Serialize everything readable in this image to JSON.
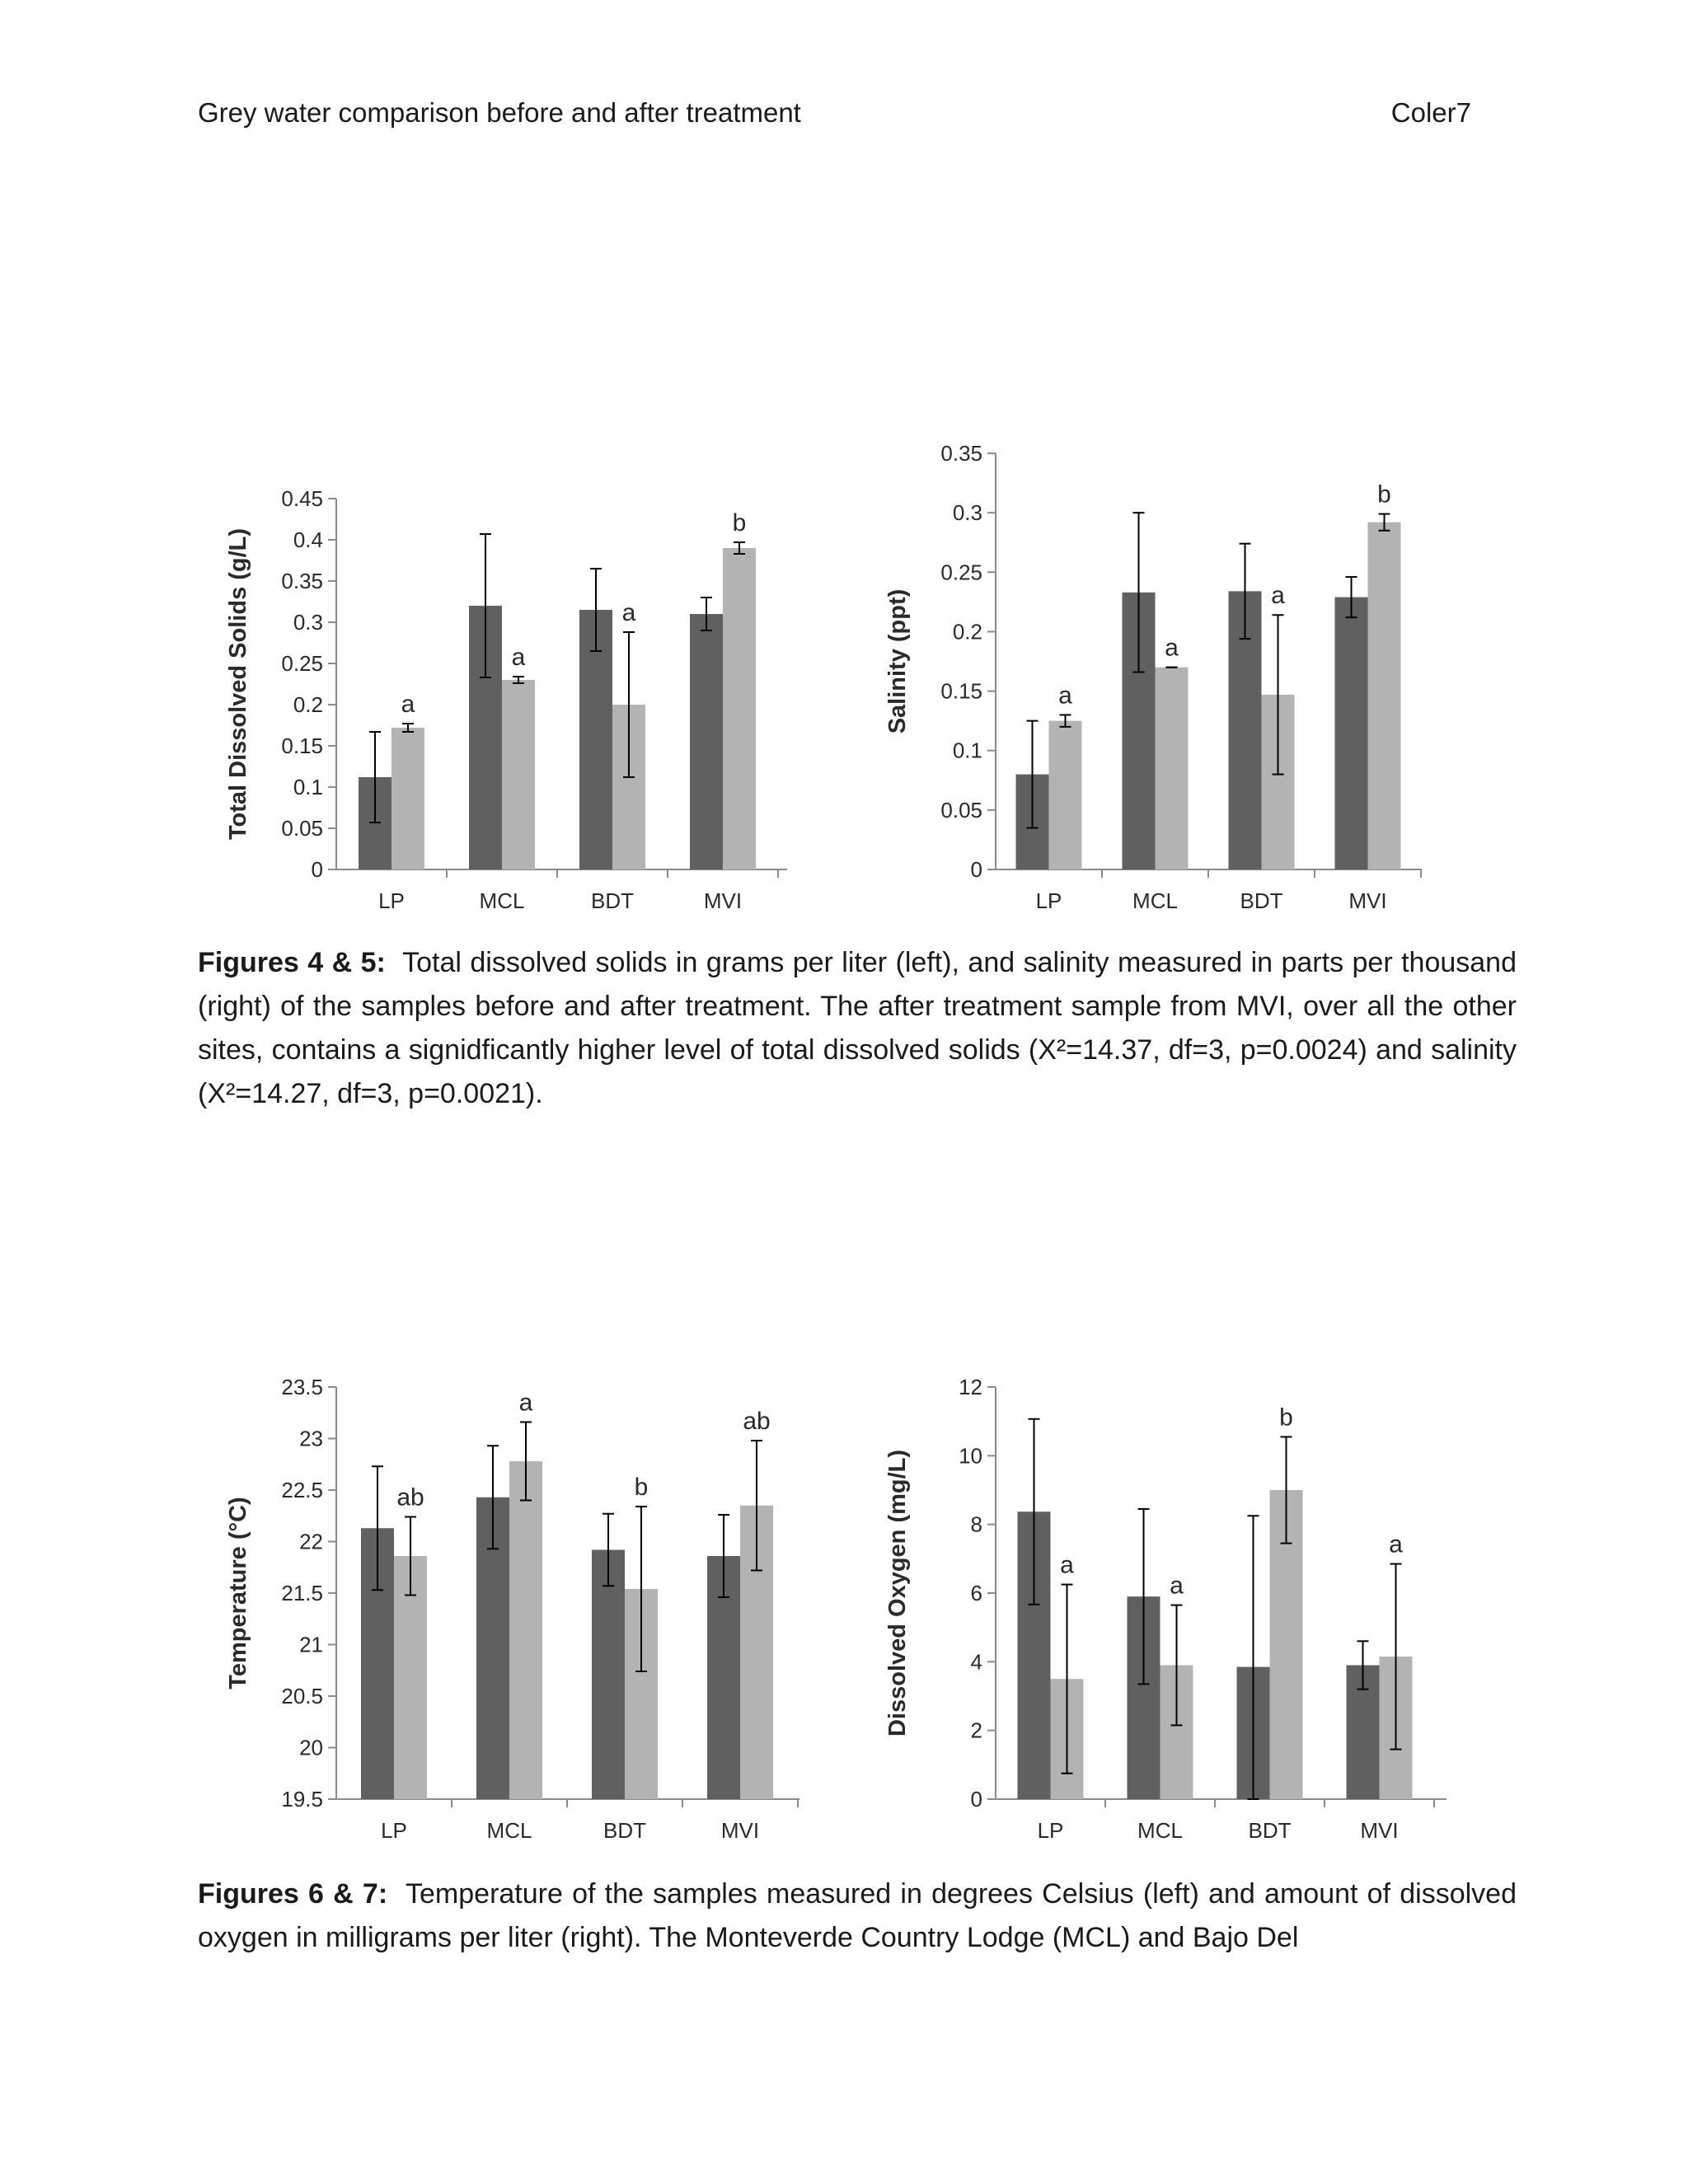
{
  "header": {
    "title": "Grey water comparison before and after treatment",
    "page_label": "Coler7"
  },
  "colors": {
    "before": "#606060",
    "after": "#b3b3b3",
    "axis": "#8a8a8a",
    "error_bar": "#000000"
  },
  "chart_data": [
    {
      "type": "bar",
      "categories": [
        "LP",
        "MCL",
        "BDT",
        "MVI"
      ],
      "ylabel": "Total Dissolved Solids (g/L)",
      "ylim": [
        0,
        0.45
      ],
      "yticks": [
        "0",
        "0.05",
        "0.1",
        "0.15",
        "0.2",
        "0.25",
        "0.3",
        "0.35",
        "0.4",
        "0.45"
      ],
      "legend": "none",
      "grid": false,
      "series": [
        {
          "values": [
            0.112,
            0.32,
            0.315,
            0.31
          ],
          "error": [
            0.055,
            0.087,
            0.05,
            0.02
          ]
        },
        {
          "values": [
            0.172,
            0.23,
            0.2,
            0.39
          ],
          "error": [
            0.005,
            0.004,
            0.088,
            0.007
          ]
        }
      ],
      "significance": [
        "a",
        "a",
        "a",
        "b"
      ]
    },
    {
      "type": "bar",
      "categories": [
        "LP",
        "MCL",
        "BDT",
        "MVI"
      ],
      "ylabel": "Salinity (ppt)",
      "ylim": [
        0,
        0.35
      ],
      "yticks": [
        "0",
        "0.05",
        "0.1",
        "0.15",
        "0.2",
        "0.25",
        "0.3",
        "0.35"
      ],
      "legend": "none",
      "grid": false,
      "series": [
        {
          "values": [
            0.08,
            0.233,
            0.234,
            0.229
          ],
          "error": [
            0.045,
            0.067,
            0.04,
            0.017
          ]
        },
        {
          "values": [
            0.125,
            0.17,
            0.147,
            0.292
          ],
          "error": [
            0.005,
            0.0,
            0.067,
            0.007
          ]
        }
      ],
      "significance": [
        "a",
        "a",
        "a",
        "b"
      ]
    },
    {
      "type": "bar",
      "categories": [
        "LP",
        "MCL",
        "BDT",
        "MVI"
      ],
      "ylabel": "Temperature (°C)",
      "ylim": [
        19.5,
        23.5
      ],
      "yticks": [
        "19.5",
        "20",
        "20.5",
        "21",
        "21.5",
        "22",
        "22.5",
        "23",
        "23.5"
      ],
      "legend": "none",
      "grid": false,
      "series": [
        {
          "values": [
            22.13,
            22.43,
            21.92,
            21.86
          ],
          "error": [
            0.6,
            0.5,
            0.35,
            0.4
          ]
        },
        {
          "values": [
            21.86,
            22.78,
            21.54,
            22.35
          ],
          "error": [
            0.38,
            0.38,
            0.8,
            0.63
          ]
        }
      ],
      "significance": [
        "ab",
        "a",
        "b",
        "ab"
      ]
    },
    {
      "type": "bar",
      "categories": [
        "LP",
        "MCL",
        "BDT",
        "MVI"
      ],
      "ylabel": "Dissolved Oxygen (mg/L)",
      "ylim": [
        0,
        12
      ],
      "yticks": [
        "0",
        "2",
        "4",
        "6",
        "8",
        "10",
        "12"
      ],
      "legend": "none",
      "grid": false,
      "series": [
        {
          "values": [
            8.37,
            5.9,
            3.85,
            3.9
          ],
          "error": [
            2.7,
            2.55,
            4.4,
            0.7
          ]
        },
        {
          "values": [
            3.5,
            3.9,
            9.0,
            4.15
          ],
          "error": [
            2.75,
            1.75,
            1.55,
            2.7
          ]
        }
      ],
      "significance": [
        "a",
        "a",
        "b",
        "a"
      ]
    }
  ],
  "captions": [
    {
      "label": "Figures 4 & 5:",
      "text": "Total dissolved solids in grams per liter (left), and salinity measured in parts per thousand (right) of the samples before and after treatment. The after treatment sample from MVI, over all the other sites, contains a signidficantly higher level of total dissolved solids (X²=14.37, df=3, p=0.0024) and salinity (X²=14.27, df=3, p=0.0021)."
    },
    {
      "label": "Figures 6 & 7:",
      "text": "Temperature of the samples measured in degrees Celsius (left) and amount of dissolved oxygen in milligrams per liter (right). The Monteverde Country Lodge (MCL) and Bajo Del"
    }
  ]
}
